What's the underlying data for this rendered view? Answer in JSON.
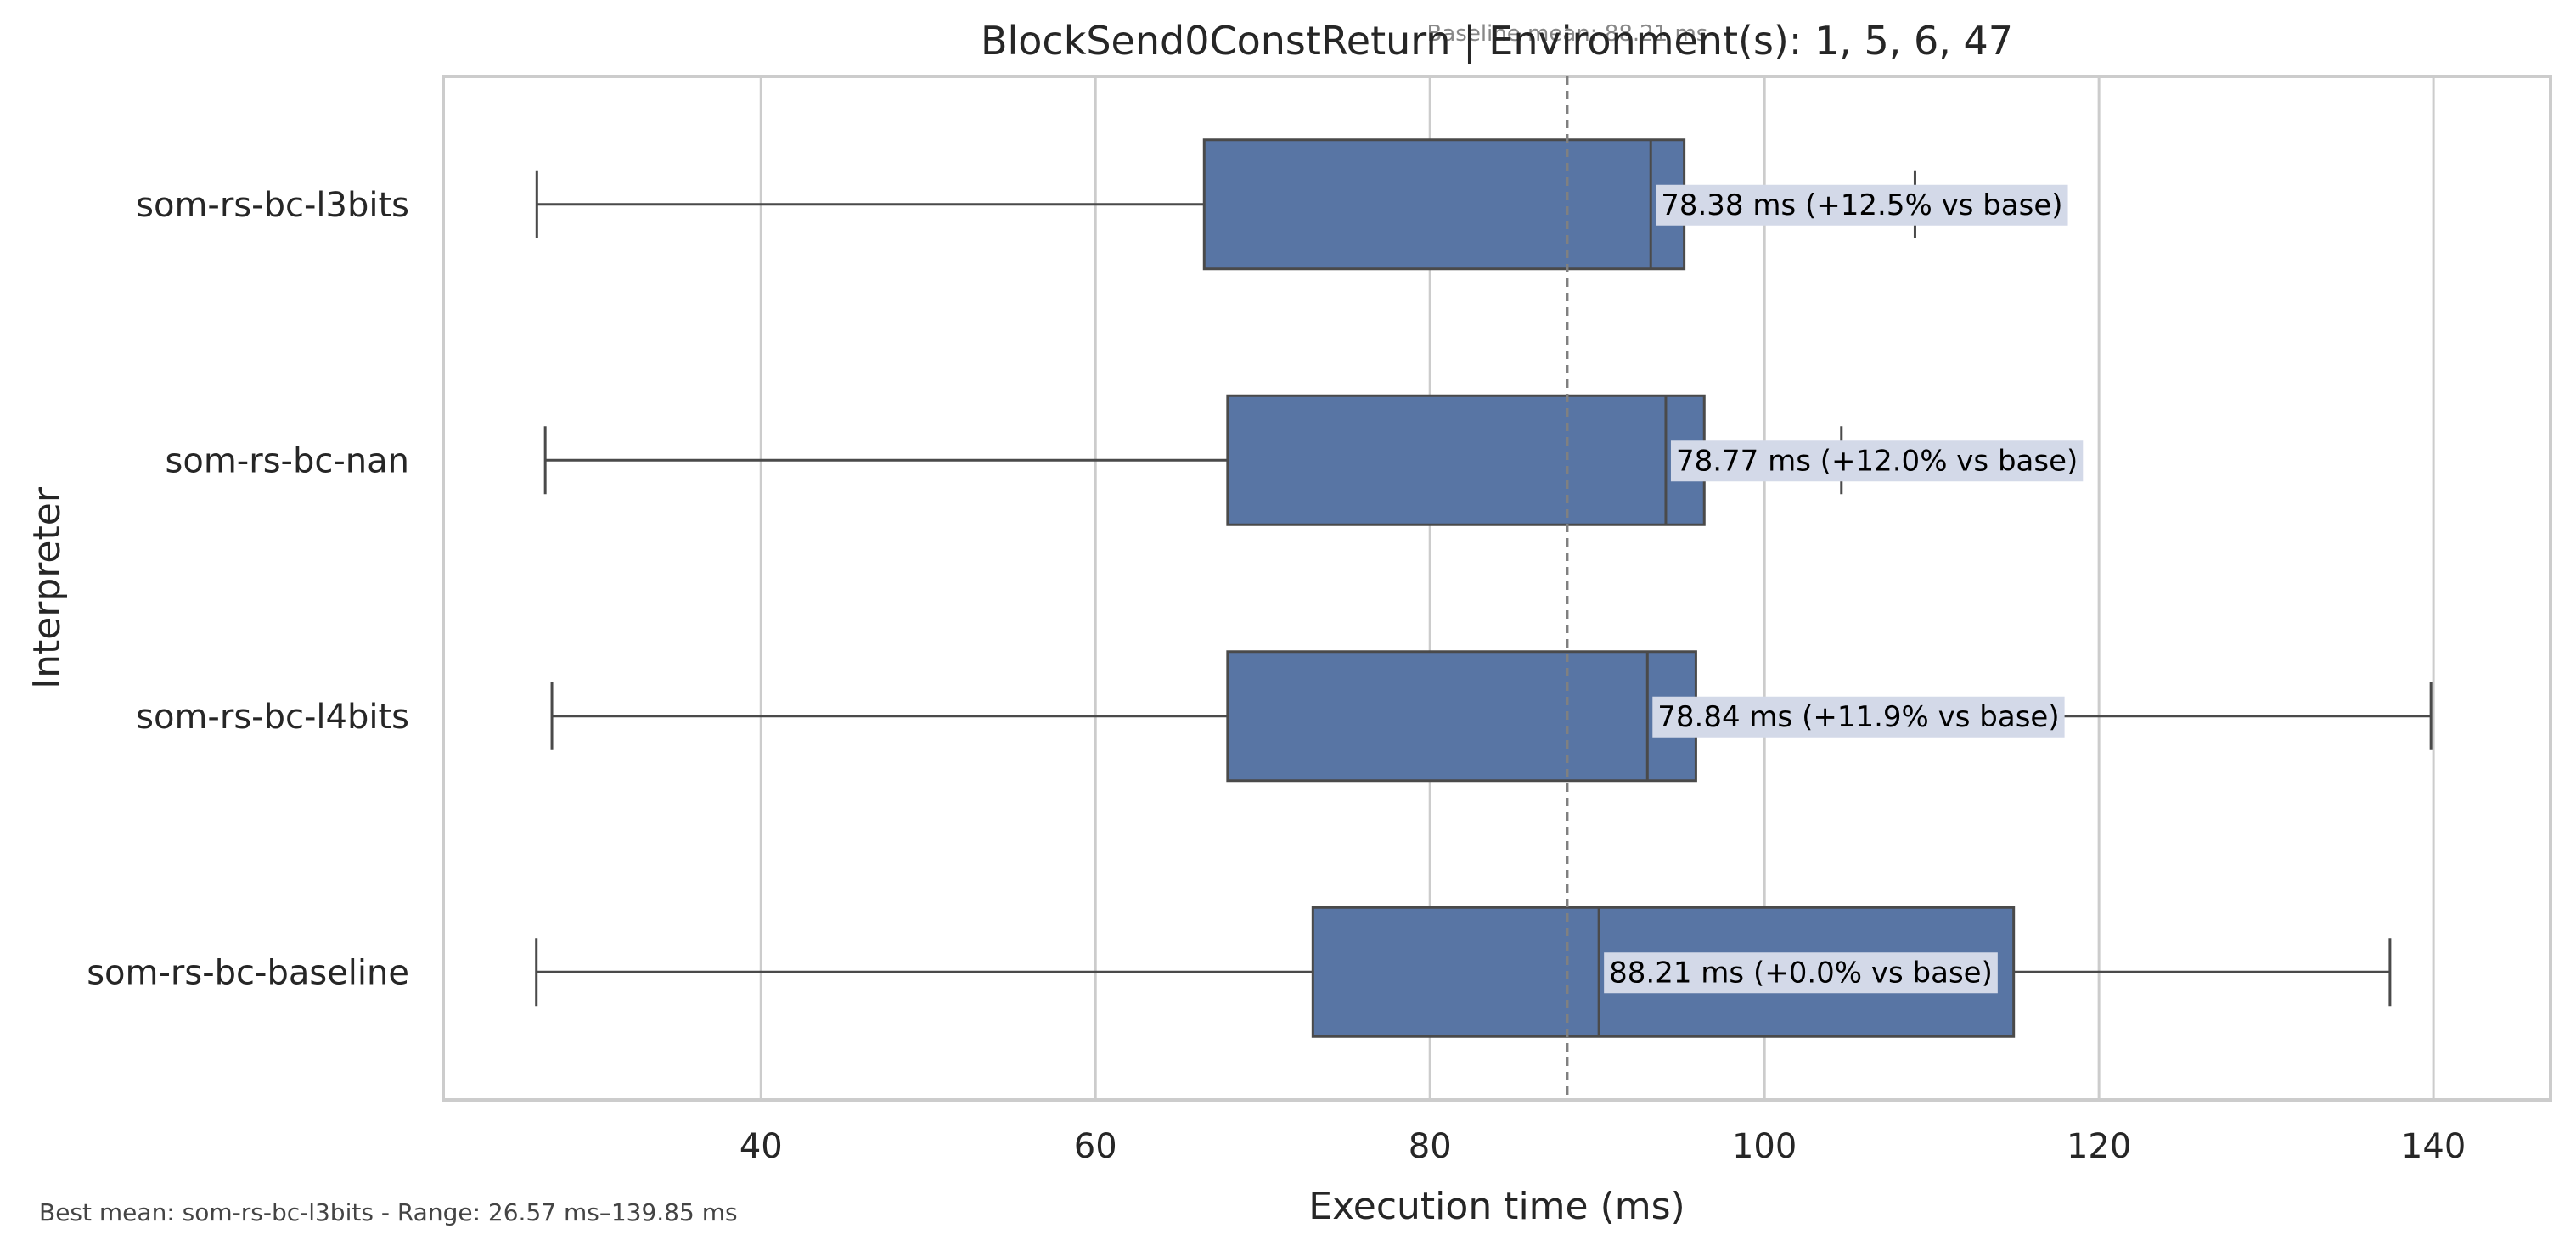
{
  "chart_data": {
    "type": "box",
    "title": "BlockSend0ConstReturn | Environment(s): 1, 5, 6, 47",
    "xlabel": "Execution time (ms)",
    "ylabel": "Interpreter",
    "xlim": [
      21,
      147
    ],
    "xticks": [
      40,
      60,
      80,
      100,
      120,
      140
    ],
    "grid": true,
    "orientation": "horizontal",
    "baseline": {
      "value": 88.21,
      "label": "Baseline mean: 88.21 ms"
    },
    "footnote": "Best mean: som-rs-bc-l3bits - Range: 26.57 ms–139.85 ms",
    "colors": {
      "box": "#5875a4",
      "line": "#4a4a4a",
      "grid": "#cccccc",
      "label_bg": "#d3d9e8"
    },
    "series": [
      {
        "name": "som-rs-bc-l3bits",
        "whisker_low": 26.6,
        "q1": 66.5,
        "median": 93.2,
        "q3": 95.2,
        "whisker_high": 109.0,
        "annotation": "78.38 ms  (+12.5% vs base)"
      },
      {
        "name": "som-rs-bc-nan",
        "whisker_low": 27.1,
        "q1": 67.9,
        "median": 94.1,
        "q3": 96.4,
        "whisker_high": 104.6,
        "annotation": "78.77 ms  (+12.0% vs base)"
      },
      {
        "name": "som-rs-bc-l4bits",
        "whisker_low": 27.5,
        "q1": 67.9,
        "median": 93.0,
        "q3": 95.9,
        "whisker_high": 139.85,
        "annotation": "78.84 ms  (+11.9% vs base)"
      },
      {
        "name": "som-rs-bc-baseline",
        "whisker_low": 26.57,
        "q1": 73.0,
        "median": 90.1,
        "q3": 114.9,
        "whisker_high": 137.4,
        "annotation": "88.21 ms  (+0.0% vs base)"
      }
    ]
  }
}
